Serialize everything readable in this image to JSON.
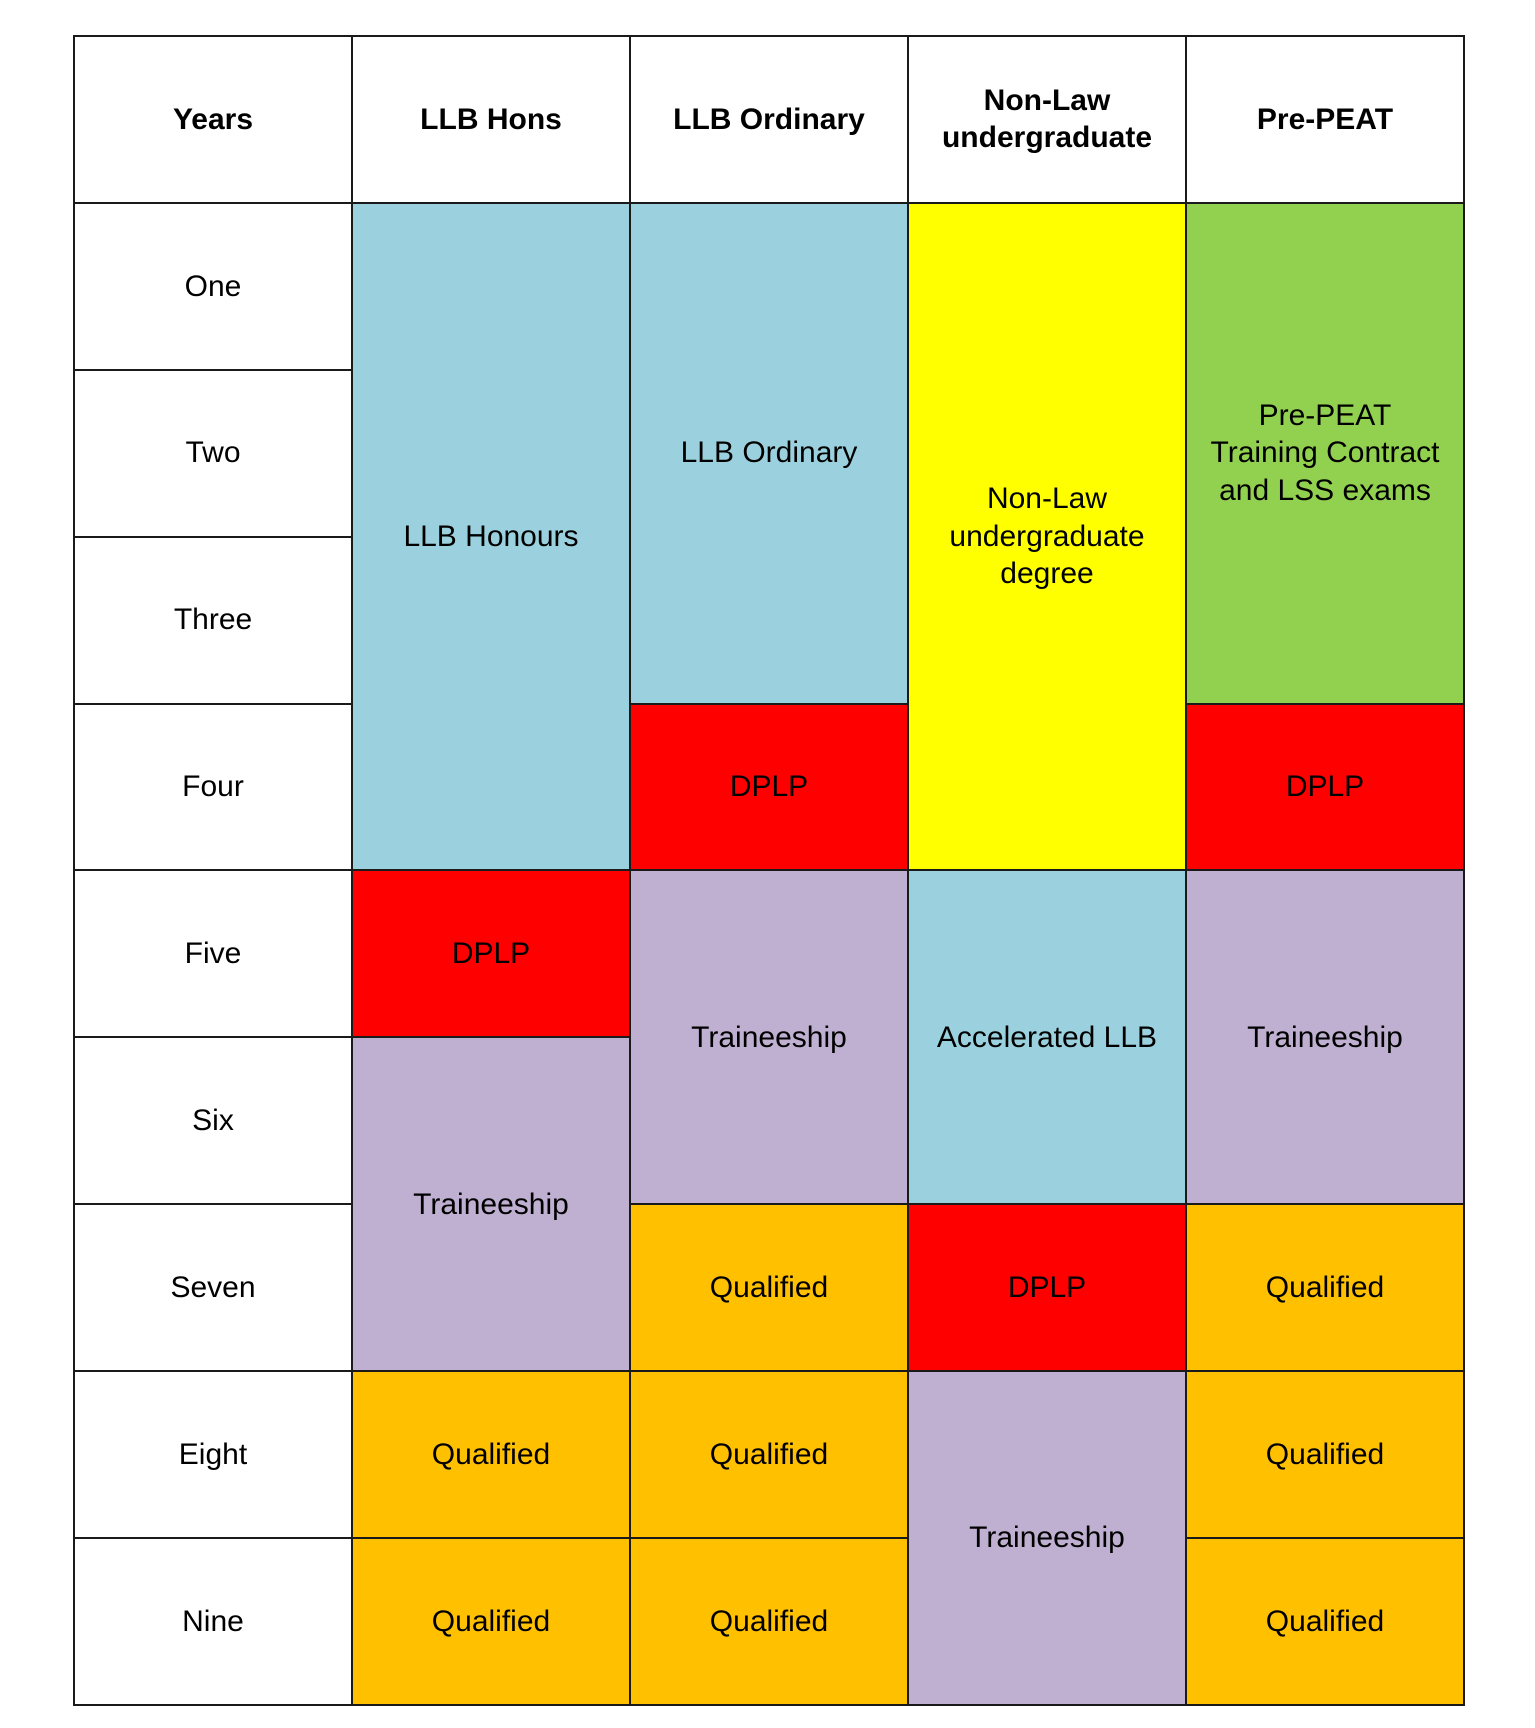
{
  "colors": {
    "llb": "#9BD1DE",
    "dplp": "#FF0000",
    "traineeship": "#BFB0D1",
    "qualified": "#FFC000",
    "non_law": "#FFFF00",
    "pre_peat": "#92D050",
    "white": "#FFFFFF"
  },
  "headers": [
    {
      "col": 1,
      "text": "Years"
    },
    {
      "col": 2,
      "text": "LLB Hons"
    },
    {
      "col": 3,
      "text": "LLB Ordinary"
    },
    {
      "col": 4,
      "text": "Non-Law\nundergraduate"
    },
    {
      "col": 5,
      "text": "Pre-PEAT"
    }
  ],
  "years": [
    "One",
    "Two",
    "Three",
    "Four",
    "Five",
    "Six",
    "Seven",
    "Eight",
    "Nine"
  ],
  "blocks": [
    {
      "col": 2,
      "row_start": 1,
      "row_span": 4,
      "text": "LLB Honours",
      "kind": "llb"
    },
    {
      "col": 2,
      "row_start": 5,
      "row_span": 1,
      "text": "DPLP",
      "kind": "dplp"
    },
    {
      "col": 2,
      "row_start": 6,
      "row_span": 2,
      "text": "Traineeship",
      "kind": "traineeship"
    },
    {
      "col": 2,
      "row_start": 8,
      "row_span": 1,
      "text": "Qualified",
      "kind": "qualified"
    },
    {
      "col": 2,
      "row_start": 9,
      "row_span": 1,
      "text": "Qualified",
      "kind": "qualified"
    },
    {
      "col": 3,
      "row_start": 1,
      "row_span": 3,
      "text": "LLB Ordinary",
      "kind": "llb"
    },
    {
      "col": 3,
      "row_start": 4,
      "row_span": 1,
      "text": "DPLP",
      "kind": "dplp"
    },
    {
      "col": 3,
      "row_start": 5,
      "row_span": 2,
      "text": "Traineeship",
      "kind": "traineeship"
    },
    {
      "col": 3,
      "row_start": 7,
      "row_span": 1,
      "text": "Qualified",
      "kind": "qualified"
    },
    {
      "col": 3,
      "row_start": 8,
      "row_span": 1,
      "text": "Qualified",
      "kind": "qualified"
    },
    {
      "col": 3,
      "row_start": 9,
      "row_span": 1,
      "text": "Qualified",
      "kind": "qualified"
    },
    {
      "col": 4,
      "row_start": 1,
      "row_span": 4,
      "text": "Non-Law\nundergraduate\ndegree",
      "kind": "non_law"
    },
    {
      "col": 4,
      "row_start": 5,
      "row_span": 2,
      "text": "Accelerated LLB",
      "kind": "llb"
    },
    {
      "col": 4,
      "row_start": 7,
      "row_span": 1,
      "text": "DPLP",
      "kind": "dplp"
    },
    {
      "col": 4,
      "row_start": 8,
      "row_span": 2,
      "text": "Traineeship",
      "kind": "traineeship"
    },
    {
      "col": 5,
      "row_start": 1,
      "row_span": 3,
      "text": "Pre-PEAT\nTraining Contract\nand LSS exams",
      "kind": "pre_peat"
    },
    {
      "col": 5,
      "row_start": 4,
      "row_span": 1,
      "text": "DPLP",
      "kind": "dplp"
    },
    {
      "col": 5,
      "row_start": 5,
      "row_span": 2,
      "text": "Traineeship",
      "kind": "traineeship"
    },
    {
      "col": 5,
      "row_start": 7,
      "row_span": 1,
      "text": "Qualified",
      "kind": "qualified"
    },
    {
      "col": 5,
      "row_start": 8,
      "row_span": 1,
      "text": "Qualified",
      "kind": "qualified"
    },
    {
      "col": 5,
      "row_start": 9,
      "row_span": 1,
      "text": "Qualified",
      "kind": "qualified"
    }
  ]
}
